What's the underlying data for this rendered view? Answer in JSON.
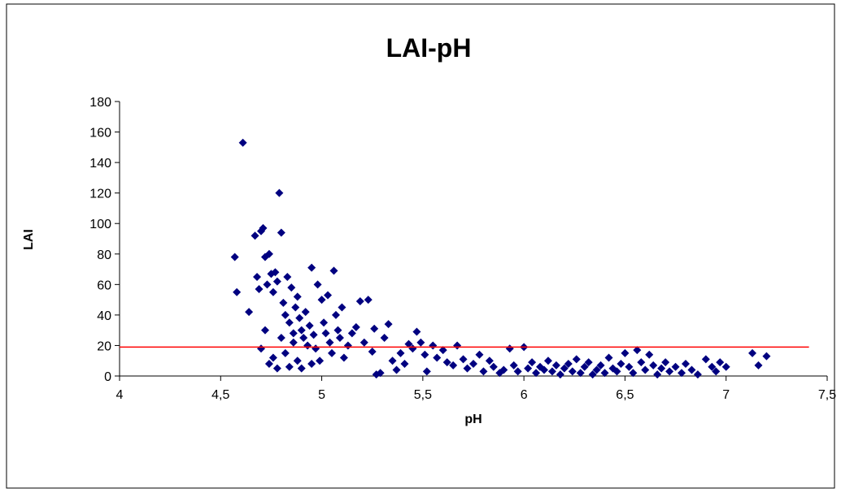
{
  "chart_data": {
    "type": "scatter",
    "title": "LAI-pH",
    "x_label": "pH",
    "y_label": "LAI",
    "xlim": [
      4,
      7.5
    ],
    "ylim": [
      0,
      180
    ],
    "xticks": [
      4,
      {
        "value": 4.5,
        "label": "4,5"
      },
      5,
      {
        "value": 5.5,
        "label": "5,5"
      },
      6,
      {
        "value": 6.5,
        "label": "6,5"
      },
      7,
      {
        "value": 7.5,
        "label": "7,5"
      }
    ],
    "yticks": [
      0,
      20,
      40,
      60,
      80,
      100,
      120,
      140,
      160,
      180
    ],
    "reference_line": {
      "x": [
        4,
        7.41
      ],
      "y": 19,
      "color": "#ff0000"
    },
    "series": [
      {
        "color": "#000080",
        "x": [
          4.57,
          4.58,
          4.61,
          4.64,
          4.67,
          4.68,
          4.69,
          4.7,
          4.71,
          4.72,
          4.73,
          4.74,
          4.75,
          4.76,
          4.77,
          4.78,
          4.79,
          4.8,
          4.81,
          4.82,
          4.83,
          4.84,
          4.85,
          4.86,
          4.87,
          4.88,
          4.89,
          4.9,
          4.91,
          4.92,
          4.93,
          4.94,
          4.95,
          4.96,
          4.97,
          4.98,
          4.99,
          5.0,
          5.01,
          5.02,
          5.03,
          5.04,
          5.05,
          5.06,
          5.07,
          5.08,
          5.09,
          5.1,
          5.11,
          5.13,
          5.15,
          5.17,
          5.19,
          5.21,
          5.23,
          5.25,
          5.26,
          5.27,
          5.29,
          5.31,
          5.33,
          5.35,
          5.37,
          5.39,
          5.41,
          5.43,
          5.45,
          5.47,
          5.49,
          5.51,
          5.52,
          5.55,
          5.57,
          5.6,
          5.62,
          5.65,
          5.67,
          5.7,
          5.72,
          5.75,
          5.78,
          5.8,
          5.83,
          5.85,
          5.88,
          5.9,
          5.93,
          5.95,
          5.97,
          6.0,
          6.02,
          6.04,
          4.7,
          4.72,
          4.74,
          4.76,
          4.78,
          4.8,
          4.82,
          4.84,
          4.86,
          4.88,
          4.9,
          4.95,
          6.06,
          6.08,
          6.1,
          6.12,
          6.14,
          6.16,
          6.18,
          6.2,
          6.22,
          6.24,
          6.26,
          6.28,
          6.3,
          6.32,
          6.34,
          6.36,
          6.38,
          6.4,
          6.42,
          6.44,
          6.46,
          6.48,
          6.5,
          6.52,
          6.54,
          6.56,
          6.58,
          6.6,
          6.62,
          6.64,
          6.66,
          6.68,
          6.7,
          6.72,
          6.75,
          6.78,
          6.8,
          6.83,
          6.86,
          6.9,
          6.93,
          6.95,
          6.97,
          7.0,
          7.13,
          7.16,
          7.2
        ],
        "y": [
          78,
          55,
          153,
          42,
          92,
          65,
          57,
          95,
          97,
          78,
          60,
          80,
          67,
          55,
          68,
          62,
          120,
          94,
          48,
          40,
          65,
          35,
          58,
          28,
          45,
          52,
          38,
          30,
          25,
          42,
          20,
          33,
          71,
          27,
          18,
          60,
          10,
          50,
          35,
          28,
          53,
          22,
          15,
          69,
          40,
          30,
          25,
          45,
          12,
          20,
          28,
          32,
          49,
          22,
          50,
          16,
          31,
          1,
          2,
          25,
          34,
          10,
          4,
          15,
          8,
          21,
          18,
          29,
          22,
          14,
          3,
          20,
          12,
          17,
          9,
          7,
          20,
          11,
          5,
          8,
          14,
          3,
          10,
          6,
          2,
          4,
          18,
          7,
          3,
          19,
          5,
          9,
          18,
          30,
          8,
          12,
          5,
          25,
          15,
          6,
          22,
          10,
          5,
          8,
          2,
          6,
          4,
          10,
          3,
          7,
          1,
          5,
          8,
          3,
          11,
          2,
          6,
          9,
          1,
          4,
          7,
          2,
          12,
          5,
          3,
          8,
          15,
          6,
          2,
          17,
          9,
          4,
          14,
          7,
          1,
          5,
          9,
          3,
          6,
          2,
          8,
          4,
          1,
          11,
          6,
          3,
          9,
          6,
          15,
          7,
          13
        ]
      }
    ]
  }
}
